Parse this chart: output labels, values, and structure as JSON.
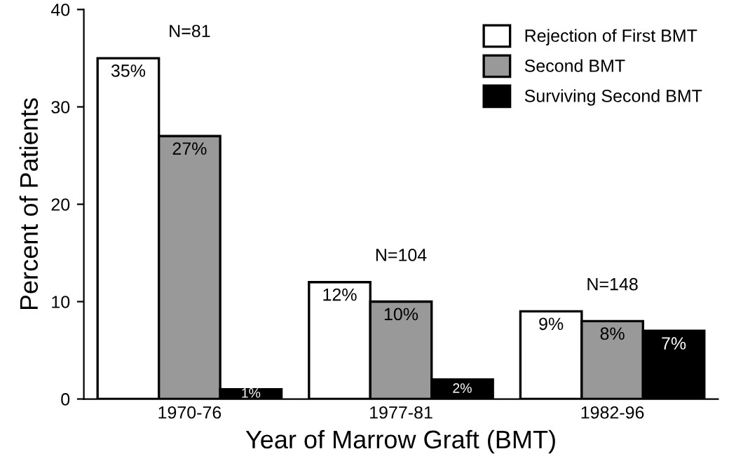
{
  "chart_data": {
    "type": "bar",
    "xlabel": "Year of Marrow Graft (BMT)",
    "ylabel": "Percent of Patients",
    "categories": [
      "1970-76",
      "1977-81",
      "1982-96"
    ],
    "series": [
      {
        "name": "Rejection of First BMT",
        "color": "#ffffff",
        "values": [
          35,
          12,
          9
        ],
        "value_labels": [
          "35%",
          "12%",
          "9%"
        ]
      },
      {
        "name": "Second BMT",
        "color": "#999999",
        "values": [
          27,
          10,
          8
        ],
        "value_labels": [
          "27%",
          "10%",
          "8%"
        ]
      },
      {
        "name": "Surviving Second BMT",
        "color": "#000000",
        "values": [
          1,
          2,
          7
        ],
        "value_labels": [
          "1%",
          "2%",
          "7%"
        ]
      }
    ],
    "ylim": [
      0,
      40
    ],
    "yticks": [
      0,
      10,
      20,
      30,
      40
    ],
    "grid": false,
    "legend": "top right",
    "annotations": [
      "N=81",
      "N=104",
      "N=148"
    ]
  }
}
